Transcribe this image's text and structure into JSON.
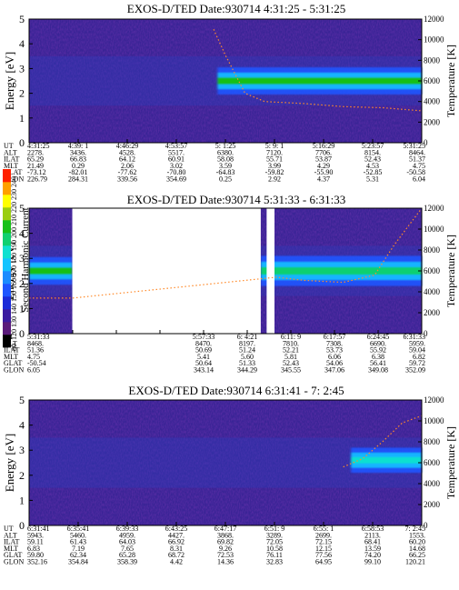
{
  "panels": [
    {
      "title": "EXOS-D/TED   Date:930714  4:31:25 - 5:31:25",
      "ylabel_left": "Energy [eV]",
      "ylabel_right": "Temperature [K]",
      "row_labels": [
        "UT",
        "ALT",
        "ILAT",
        "MLT",
        "GLAT",
        "GLON"
      ],
      "columns": [
        [
          "4:31:25",
          "2278.",
          "65.29",
          "21.49",
          "-73.12",
          "226.79"
        ],
        [
          "4:39: 1",
          "3436.",
          "66.83",
          "0.29",
          "-82.01",
          "284.31"
        ],
        [
          "4:46:29",
          "4528.",
          "64.12",
          "2.06",
          "-77.62",
          "339.56"
        ],
        [
          "4:53:57",
          "5517.",
          "60.91",
          "3.02",
          "-70.80",
          "354.69"
        ],
        [
          "5: 1:25",
          "6380.",
          "58.08",
          "3.59",
          "-64.83",
          "0.25"
        ],
        [
          "5: 9: 1",
          "7120.",
          "55.71",
          "3.99",
          "-59.82",
          "2.92"
        ],
        [
          "5:16:29",
          "7706.",
          "53.87",
          "4.29",
          "-55.90",
          "4.37"
        ],
        [
          "5:23:57",
          "8154.",
          "52.43",
          "4.53",
          "-52.85",
          "5.31"
        ],
        [
          "5:31:25",
          "8464.",
          "51.37",
          "4.75",
          "-50.58",
          "6.04"
        ]
      ]
    },
    {
      "title": "EXOS-D/TED   Date:930714  5:31:33 - 6:31:33",
      "ylabel_left": "Energy [eV]",
      "ylabel_right": "Temperature [K]",
      "row_labels": [
        "UT",
        "ALT",
        "ILAT",
        "MLT",
        "GLAT",
        "GLON"
      ],
      "columns": [
        [
          "5:31:33",
          "8468.",
          "51.36",
          "4.75",
          "-50.54",
          "6.05"
        ],
        [
          "",
          "",
          "",
          "",
          "",
          ""
        ],
        [
          "",
          "",
          "",
          "",
          "",
          ""
        ],
        [
          "",
          "",
          "",
          "",
          "",
          ""
        ],
        [
          "5:57:33",
          "8470.",
          "50.69",
          "5.41",
          "50.64",
          "343.14"
        ],
        [
          "6: 4:21",
          "8197.",
          "51.24",
          "5.60",
          "51.33",
          "344.29"
        ],
        [
          "6:11: 9",
          "7810.",
          "52.21",
          "5.81",
          "52.43",
          "345.55"
        ],
        [
          "6:17:57",
          "7308.",
          "53.73",
          "6.06",
          "54.06",
          "347.06"
        ],
        [
          "6:24:45",
          "6690.",
          "55.92",
          "6.38",
          "56.41",
          "349.08"
        ],
        [
          "6:31:33",
          "5959.",
          "59.04",
          "6.82",
          "59.72",
          "352.09"
        ]
      ]
    },
    {
      "title": "EXOS-D/TED   Date:930714  6:31:41 - 7: 2:45",
      "ylabel_left": "Energy [eV]",
      "ylabel_right": "Temperature [K]",
      "row_labels": [
        "UT",
        "ALT",
        "ILAT",
        "MLT",
        "GLAT",
        "GLON"
      ],
      "columns": [
        [
          "6:31:41",
          "5943.",
          "59.11",
          "6.83",
          "59.80",
          "352.16"
        ],
        [
          "6:35:41",
          "5460.",
          "61.43",
          "7.19",
          "62.34",
          "354.84"
        ],
        [
          "6:39:33",
          "4959.",
          "64.03",
          "7.65",
          "65.28",
          "358.39"
        ],
        [
          "6:43:25",
          "4427.",
          "66.92",
          "8.31",
          "68.72",
          "4.42"
        ],
        [
          "6:47:17",
          "3868.",
          "69.82",
          "9.26",
          "72.53",
          "14.36"
        ],
        [
          "6:51: 9",
          "3289.",
          "72.05",
          "10.58",
          "76.11",
          "32.83"
        ],
        [
          "6:55: 1",
          "2699.",
          "72.15",
          "12.15",
          "77.56",
          "64.95"
        ],
        [
          "6:58:53",
          "2113.",
          "68.41",
          "13.59",
          "74.20",
          "99.10"
        ],
        [
          "7: 2:45",
          "1553.",
          "60.20",
          "14.68",
          "66.25",
          "120.21"
        ]
      ]
    }
  ],
  "colorbar": {
    "label": "Second Harmonic Current",
    "ticks": [
      "80",
      "120",
      "130",
      "140",
      "150",
      "160",
      "170",
      "180",
      "190",
      "200",
      "210",
      "220",
      "230",
      "240"
    ],
    "colors": [
      "#000000",
      "#5a1a7a",
      "#3a1aa0",
      "#1a2ad8",
      "#1d55ff",
      "#1a8cff",
      "#13c4ff",
      "#10e0d0",
      "#10d070",
      "#18c018",
      "#9acd10",
      "#ffff00",
      "#ffa000",
      "#ff2000"
    ]
  },
  "chart_data": [
    {
      "type": "heatmap",
      "title": "EXOS-D/TED   Date:930714  4:31:25 - 5:31:25",
      "xlabel": "UT",
      "ylabel": "Energy [eV]",
      "y2label": "Temperature [K]",
      "ylim": [
        0,
        5
      ],
      "y2lim": [
        0,
        12000
      ],
      "yticks": [
        0,
        1,
        2,
        3,
        4,
        5
      ],
      "y2ticks": [
        0,
        2000,
        4000,
        6000,
        8000,
        10000,
        12000
      ],
      "xticks": [
        "4:31:25",
        "4:39: 1",
        "4:46:29",
        "4:53:57",
        "5: 1:25",
        "5: 9: 1",
        "5:16:29",
        "5:23:57",
        "5:31:25"
      ],
      "bands": [
        {
          "x_start": 0.48,
          "x_end": 1.0,
          "energy_center": 2.5,
          "energy_halfwidth": 0.55,
          "level": 200
        }
      ],
      "temperature": {
        "t": [
          0.47,
          0.5,
          0.55,
          0.6,
          0.7,
          0.8,
          0.9,
          1.0
        ],
        "values": [
          11000,
          8500,
          4800,
          4000,
          3800,
          3500,
          3400,
          3100
        ]
      }
    },
    {
      "type": "heatmap",
      "title": "EXOS-D/TED   Date:930714  5:31:33 - 6:31:33",
      "xlabel": "UT",
      "ylabel": "Energy [eV]",
      "y2label": "Temperature [K]",
      "ylim": [
        0,
        5
      ],
      "y2lim": [
        0,
        12000
      ],
      "yticks": [
        0,
        1,
        2,
        3,
        4,
        5
      ],
      "y2ticks": [
        0,
        2000,
        4000,
        6000,
        8000,
        10000,
        12000
      ],
      "xticks": [
        "5:31:33",
        "5:57:33",
        "6: 4:21",
        "6:11: 9",
        "6:17:57",
        "6:24:45",
        "6:31:33"
      ],
      "data_gaps": [
        [
          0.11,
          0.59
        ],
        [
          0.605,
          0.625
        ]
      ],
      "bands": [
        {
          "x_start": 0.0,
          "x_end": 0.11,
          "energy_center": 2.5,
          "energy_halfwidth": 0.55,
          "level": 200
        },
        {
          "x_start": 0.59,
          "x_end": 1.0,
          "energy_center": 2.5,
          "energy_halfwidth": 0.6,
          "level": 190
        }
      ],
      "temperature": {
        "t": [
          0.0,
          0.11,
          0.63,
          0.7,
          0.8,
          0.88,
          0.93,
          1.0
        ],
        "values": [
          3400,
          3400,
          5400,
          5100,
          4900,
          5600,
          8500,
          12000
        ]
      }
    },
    {
      "type": "heatmap",
      "title": "EXOS-D/TED   Date:930714  6:31:41 - 7: 2:45",
      "xlabel": "UT",
      "ylabel": "Energy [eV]",
      "y2label": "Temperature [K]",
      "ylim": [
        0,
        5
      ],
      "y2lim": [
        0,
        12000
      ],
      "yticks": [
        0,
        1,
        2,
        3,
        4,
        5
      ],
      "y2ticks": [
        0,
        2000,
        4000,
        6000,
        8000,
        10000,
        12000
      ],
      "xticks": [
        "6:31:41",
        "6:35:41",
        "6:39:33",
        "6:43:25",
        "6:47:17",
        "6:51: 9",
        "6:55: 1",
        "6:58:53",
        "7: 2:45"
      ],
      "bands": [
        {
          "x_start": 0.82,
          "x_end": 1.0,
          "energy_center": 2.6,
          "energy_halfwidth": 0.5,
          "level": 185
        }
      ],
      "temperature": {
        "t": [
          0.8,
          0.85,
          0.9,
          0.95,
          1.0
        ],
        "values": [
          5600,
          6400,
          8000,
          9800,
          10500
        ]
      }
    }
  ]
}
